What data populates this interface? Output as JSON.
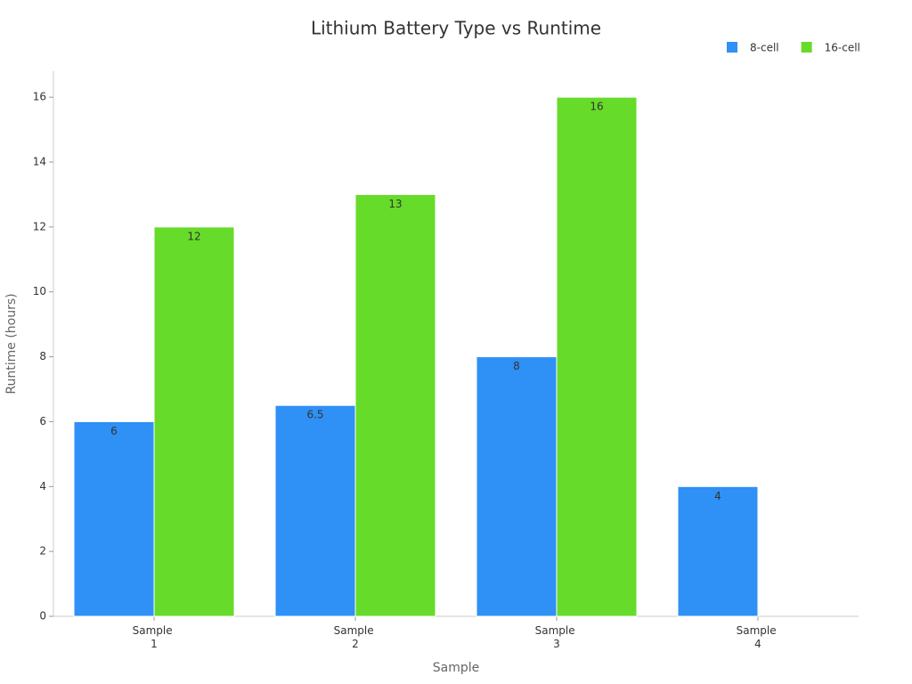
{
  "chart_data": {
    "type": "bar",
    "title": "Lithium Battery Type vs Runtime",
    "x_label": "Sample",
    "y_label": "Runtime (hours)",
    "categories": [
      "Sample 1",
      "Sample 2",
      "Sample 3",
      "Sample 4"
    ],
    "series": [
      {
        "name": "8-cell",
        "color": "#2f90f5",
        "values": [
          6,
          6.5,
          8,
          4
        ]
      },
      {
        "name": "16-cell",
        "color": "#67db29",
        "values": [
          12,
          13,
          16,
          null
        ]
      }
    ],
    "ylim": [
      0,
      16.8
    ],
    "yticks": [
      0,
      2,
      4,
      6,
      8,
      10,
      12,
      14,
      16
    ],
    "legend": "top-right"
  }
}
